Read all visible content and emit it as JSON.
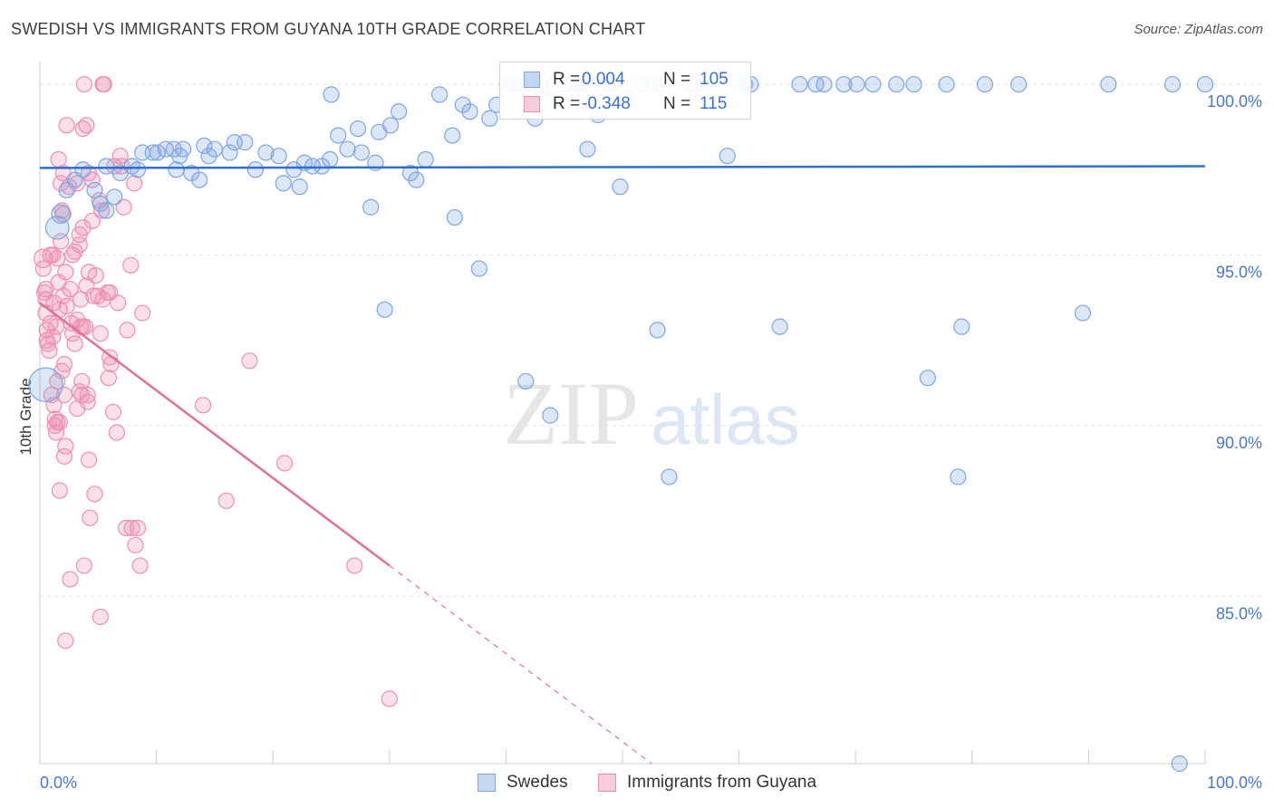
{
  "title": "SWEDISH VS IMMIGRANTS FROM GUYANA 10TH GRADE CORRELATION CHART",
  "source": "Source: ZipAtlas.com",
  "watermark": {
    "zip": "ZIP",
    "atlas": "atlas"
  },
  "colors": {
    "blue": "#7ea6e0",
    "blue_fill": "rgba(126,166,224,0.28)",
    "blue_line": "#2f6fd0",
    "pink": "#ee8fb0",
    "pink_fill": "rgba(238,143,176,0.28)",
    "pink_line": "#e0709a",
    "tick": "#4a78c4",
    "grid": "#e3e3e3"
  },
  "legend": {
    "rows": [
      {
        "r_label": "R =",
        "r_value": "0.004",
        "n_label": "N =",
        "n_value": "105"
      },
      {
        "r_label": "R =",
        "r_value": "-0.348",
        "n_label": "N =",
        "n_value": "115"
      }
    ]
  },
  "bottom_legend": [
    "Swedes",
    "Immigrants from Guyana"
  ],
  "chart_data": {
    "type": "scatter",
    "title": "SWEDISH VS IMMIGRANTS FROM GUYANA 10TH GRADE CORRELATION CHART",
    "xlabel": "",
    "ylabel": "10th Grade",
    "xlim": [
      0,
      100
    ],
    "ylim": [
      80.1,
      100.4
    ],
    "x_tick_labels": [
      "0.0%",
      "100.0%"
    ],
    "y_ticks": [
      85,
      90,
      95,
      100
    ],
    "y_tick_labels": [
      "85.0%",
      "90.0%",
      "95.0%",
      "100.0%"
    ],
    "grid": true,
    "legend_placement": "top-center",
    "series": [
      {
        "name": "Swedes",
        "color": "#7ea6e0",
        "r": 0.004,
        "n": 105,
        "trend": {
          "x": [
            0,
            100
          ],
          "y": [
            97.55,
            97.6
          ]
        },
        "points": [
          [
            0.5,
            91.2,
            2.2
          ],
          [
            1.5,
            95.8,
            1.5
          ],
          [
            1.8,
            96.2,
            1.2
          ],
          [
            2.3,
            96.9,
            1.0
          ],
          [
            3.0,
            97.2,
            1.0
          ],
          [
            3.7,
            97.5,
            1.0
          ],
          [
            4.7,
            96.9,
            1.0
          ],
          [
            5.2,
            96.5,
            1.0
          ],
          [
            5.7,
            96.3,
            1.0
          ],
          [
            6.4,
            96.7,
            1.0
          ],
          [
            6.9,
            97.4,
            1.0
          ],
          [
            7.9,
            97.6,
            1.0
          ],
          [
            8.4,
            97.5,
            1.0
          ],
          [
            8.8,
            98.0,
            1.0
          ],
          [
            9.7,
            98.0,
            1.0
          ],
          [
            10.1,
            98.0,
            1.0
          ],
          [
            10.8,
            98.1,
            1.0
          ],
          [
            11.5,
            98.1,
            1.0
          ],
          [
            11.7,
            97.5,
            1.0
          ],
          [
            12.0,
            97.9,
            1.0
          ],
          [
            12.3,
            98.1,
            1.0
          ],
          [
            13.0,
            97.4,
            1.0
          ],
          [
            13.7,
            97.2,
            1.0
          ],
          [
            14.1,
            98.2,
            1.0
          ],
          [
            14.5,
            97.9,
            1.0
          ],
          [
            15.0,
            98.1,
            1.0
          ],
          [
            16.3,
            98.0,
            1.0
          ],
          [
            16.7,
            98.3,
            1.0
          ],
          [
            17.6,
            98.3,
            1.0
          ],
          [
            18.5,
            97.5,
            1.0
          ],
          [
            19.4,
            98.0,
            1.0
          ],
          [
            20.5,
            97.9,
            1.0
          ],
          [
            20.9,
            97.1,
            1.0
          ],
          [
            21.8,
            97.5,
            1.0
          ],
          [
            22.3,
            97.0,
            1.0
          ],
          [
            22.7,
            97.7,
            1.0
          ],
          [
            23.4,
            97.6,
            1.0
          ],
          [
            24.2,
            97.6,
            1.0
          ],
          [
            24.9,
            97.8,
            1.0
          ],
          [
            25.6,
            98.5,
            1.0
          ],
          [
            26.4,
            98.1,
            1.0
          ],
          [
            27.3,
            98.7,
            1.0
          ],
          [
            27.6,
            98.0,
            1.0
          ],
          [
            28.4,
            96.4,
            1.0
          ],
          [
            29.1,
            98.6,
            1.0
          ],
          [
            29.6,
            93.4,
            1.0
          ],
          [
            30.1,
            98.8,
            1.0
          ],
          [
            30.8,
            99.2,
            1.0
          ],
          [
            31.8,
            97.4,
            1.0
          ],
          [
            32.3,
            97.2,
            1.0
          ],
          [
            33.1,
            97.8,
            1.0
          ],
          [
            34.3,
            99.7,
            1.0
          ],
          [
            35.4,
            98.5,
            1.0
          ],
          [
            35.6,
            96.1,
            1.0
          ],
          [
            36.3,
            99.4,
            1.0
          ],
          [
            36.9,
            99.2,
            1.0
          ],
          [
            37.7,
            94.6,
            1.0
          ],
          [
            38.6,
            99.0,
            1.0
          ],
          [
            39.2,
            99.4,
            1.0
          ],
          [
            40.1,
            100.0,
            1.0
          ],
          [
            41.2,
            100.0,
            1.0
          ],
          [
            41.7,
            91.3,
            1.0
          ],
          [
            42.5,
            99.0,
            1.0
          ],
          [
            43.0,
            100.0,
            1.0
          ],
          [
            43.2,
            99.8,
            1.0
          ],
          [
            43.8,
            90.3,
            1.0
          ],
          [
            45.6,
            100.0,
            1.0
          ],
          [
            46.4,
            100.0,
            1.0
          ],
          [
            47.0,
            98.1,
            1.0
          ],
          [
            47.9,
            99.1,
            1.0
          ],
          [
            48.7,
            100.0,
            1.0
          ],
          [
            49.8,
            97.0,
            1.0
          ],
          [
            50.3,
            99.6,
            1.0
          ],
          [
            53.0,
            92.8,
            1.0
          ],
          [
            53.4,
            100.0,
            1.0
          ],
          [
            54.0,
            88.5,
            1.0
          ],
          [
            55.8,
            100.0,
            1.0
          ],
          [
            56.3,
            100.0,
            1.0
          ],
          [
            57.0,
            100.0,
            1.0
          ],
          [
            59.0,
            97.9,
            1.0
          ],
          [
            60.5,
            100.0,
            1.0
          ],
          [
            61.0,
            100.0,
            1.0
          ],
          [
            63.5,
            92.9,
            1.0
          ],
          [
            65.2,
            100.0,
            1.0
          ],
          [
            66.6,
            100.0,
            1.0
          ],
          [
            67.3,
            100.0,
            1.0
          ],
          [
            69.0,
            100.0,
            1.0
          ],
          [
            70.1,
            100.0,
            1.0
          ],
          [
            71.5,
            100.0,
            1.0
          ],
          [
            73.5,
            100.0,
            1.0
          ],
          [
            75.0,
            100.0,
            1.0
          ],
          [
            76.2,
            91.4,
            1.0
          ],
          [
            77.8,
            100.0,
            1.0
          ],
          [
            78.8,
            88.5,
            1.0
          ],
          [
            79.1,
            92.9,
            1.0
          ],
          [
            81.1,
            100.0,
            1.0
          ],
          [
            84.0,
            100.0,
            1.0
          ],
          [
            89.5,
            93.3,
            1.0
          ],
          [
            91.7,
            100.0,
            1.0
          ],
          [
            97.2,
            100.0,
            1.0
          ],
          [
            97.8,
            80.1,
            1.0
          ],
          [
            100.0,
            100.0,
            1.0
          ],
          [
            44.9,
            100.0,
            1.0
          ],
          [
            51.6,
            100.0,
            1.0
          ],
          [
            52.7,
            100.0,
            1.0
          ],
          [
            40.6,
            100.0,
            1.0
          ],
          [
            49.0,
            100.0,
            1.0
          ],
          [
            28.8,
            97.7,
            1.0
          ],
          [
            5.7,
            97.6,
            1.0
          ],
          [
            25.0,
            99.7,
            1.0
          ],
          [
            46.2,
            100.0,
            1.0
          ]
        ]
      },
      {
        "name": "Immigrants from Guyana",
        "color": "#ee8fb0",
        "r": -0.348,
        "n": 115,
        "trend": {
          "x": [
            0,
            30
          ],
          "y": [
            93.6,
            85.9
          ],
          "extended_to": [
            52.5,
            80.1
          ]
        },
        "points": [
          [
            0.3,
            94.9,
            1.2
          ],
          [
            0.3,
            94.6,
            1.0
          ],
          [
            0.4,
            93.9,
            1.0
          ],
          [
            0.5,
            93.7,
            1.0
          ],
          [
            0.5,
            93.3,
            1.0
          ],
          [
            0.6,
            92.8,
            1.0
          ],
          [
            0.6,
            92.5,
            1.0
          ],
          [
            0.7,
            92.4,
            1.0
          ],
          [
            0.8,
            92.2,
            1.0
          ],
          [
            0.9,
            95.0,
            1.0
          ],
          [
            0.9,
            93.0,
            1.0
          ],
          [
            1.0,
            90.9,
            1.0
          ],
          [
            1.1,
            92.6,
            1.0
          ],
          [
            1.2,
            93.6,
            1.0
          ],
          [
            1.2,
            90.6,
            1.0
          ],
          [
            1.3,
            90.2,
            1.0
          ],
          [
            1.4,
            89.8,
            1.0
          ],
          [
            1.4,
            92.9,
            1.0
          ],
          [
            1.5,
            90.1,
            1.0
          ],
          [
            1.5,
            94.9,
            1.0
          ],
          [
            1.5,
            91.3,
            1.0
          ],
          [
            1.6,
            97.8,
            1.0
          ],
          [
            1.6,
            94.2,
            1.0
          ],
          [
            1.7,
            93.4,
            1.0
          ],
          [
            1.7,
            90.1,
            1.0
          ],
          [
            1.7,
            88.1,
            1.0
          ],
          [
            1.8,
            97.1,
            1.0
          ],
          [
            1.8,
            95.4,
            1.0
          ],
          [
            1.9,
            96.3,
            1.0
          ],
          [
            1.9,
            91.6,
            1.0
          ],
          [
            2.0,
            97.4,
            1.0
          ],
          [
            2.0,
            96.2,
            1.0
          ],
          [
            2.0,
            93.8,
            1.0
          ],
          [
            2.1,
            90.9,
            1.0
          ],
          [
            2.1,
            89.1,
            1.0
          ],
          [
            2.2,
            94.5,
            1.0
          ],
          [
            2.2,
            89.4,
            1.0
          ],
          [
            2.2,
            83.7,
            1.0
          ],
          [
            2.3,
            98.8,
            1.0
          ],
          [
            2.3,
            93.5,
            1.0
          ],
          [
            2.5,
            97.0,
            1.0
          ],
          [
            2.6,
            94.0,
            1.0
          ],
          [
            2.6,
            85.5,
            1.0
          ],
          [
            2.7,
            93.0,
            1.0
          ],
          [
            2.8,
            92.7,
            1.0
          ],
          [
            2.8,
            95.0,
            1.0
          ],
          [
            3.0,
            95.1,
            1.0
          ],
          [
            3.0,
            92.4,
            1.0
          ],
          [
            3.2,
            97.1,
            1.0
          ],
          [
            3.2,
            93.1,
            1.0
          ],
          [
            3.2,
            90.5,
            1.0
          ],
          [
            3.4,
            95.6,
            1.0
          ],
          [
            3.4,
            95.3,
            1.0
          ],
          [
            3.4,
            91.0,
            1.0
          ],
          [
            3.5,
            92.9,
            1.0
          ],
          [
            3.6,
            91.3,
            1.0
          ],
          [
            3.6,
            90.9,
            1.0
          ],
          [
            3.7,
            98.7,
            1.0
          ],
          [
            3.7,
            95.8,
            1.0
          ],
          [
            3.7,
            92.9,
            1.0
          ],
          [
            3.8,
            100.0,
            1.0
          ],
          [
            3.8,
            85.9,
            1.0
          ],
          [
            3.9,
            92.9,
            1.0
          ],
          [
            4.0,
            98.8,
            1.0
          ],
          [
            4.0,
            94.1,
            1.0
          ],
          [
            4.1,
            90.7,
            1.0
          ],
          [
            4.1,
            90.9,
            1.0
          ],
          [
            4.2,
            94.5,
            1.0
          ],
          [
            4.2,
            89.0,
            1.0
          ],
          [
            4.3,
            87.3,
            1.0
          ],
          [
            4.5,
            97.2,
            1.0
          ],
          [
            4.5,
            96.0,
            1.0
          ],
          [
            4.6,
            93.8,
            1.0
          ],
          [
            4.7,
            88.0,
            1.0
          ],
          [
            4.8,
            94.4,
            1.0
          ],
          [
            5.0,
            93.8,
            1.0
          ],
          [
            5.1,
            96.6,
            1.0
          ],
          [
            5.2,
            92.7,
            1.0
          ],
          [
            5.2,
            84.4,
            1.0
          ],
          [
            5.3,
            96.3,
            1.0
          ],
          [
            5.4,
            100.0,
            1.0
          ],
          [
            5.4,
            93.7,
            1.0
          ],
          [
            5.5,
            100.0,
            1.0
          ],
          [
            5.8,
            93.9,
            1.0
          ],
          [
            6.0,
            93.9,
            1.0
          ],
          [
            6.0,
            92.0,
            1.0
          ],
          [
            6.1,
            91.8,
            1.0
          ],
          [
            6.3,
            90.4,
            1.0
          ],
          [
            6.4,
            97.6,
            1.0
          ],
          [
            6.6,
            89.8,
            1.0
          ],
          [
            6.7,
            93.6,
            1.0
          ],
          [
            6.9,
            97.9,
            1.0
          ],
          [
            7.0,
            97.6,
            1.0
          ],
          [
            7.2,
            96.4,
            1.0
          ],
          [
            7.4,
            87.0,
            1.0
          ],
          [
            7.5,
            92.8,
            1.0
          ],
          [
            7.8,
            94.7,
            1.0
          ],
          [
            7.9,
            87.0,
            1.0
          ],
          [
            8.1,
            97.1,
            1.0
          ],
          [
            8.2,
            86.5,
            1.0
          ],
          [
            8.4,
            87.0,
            1.0
          ],
          [
            8.6,
            85.9,
            1.0
          ],
          [
            8.8,
            93.3,
            1.0
          ],
          [
            14.0,
            90.6,
            1.0
          ],
          [
            16.0,
            87.8,
            1.0
          ],
          [
            18.0,
            91.9,
            1.0
          ],
          [
            21.0,
            88.9,
            1.0
          ],
          [
            27.0,
            85.9,
            1.0
          ],
          [
            30.0,
            82.0,
            1.0
          ],
          [
            4.2,
            97.4,
            1.0
          ],
          [
            0.5,
            94.0,
            1.0
          ],
          [
            1.1,
            95.0,
            1.0
          ],
          [
            3.5,
            93.7,
            1.0
          ],
          [
            2.1,
            91.8,
            1.0
          ],
          [
            1.3,
            90.0,
            1.0
          ],
          [
            5.9,
            91.4,
            1.0
          ]
        ]
      }
    ]
  }
}
